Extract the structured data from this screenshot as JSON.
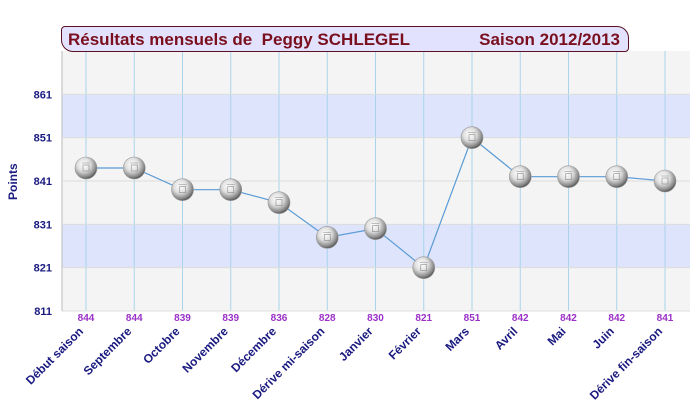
{
  "header": {
    "title_left": "Résultats mensuels de  Peggy SCHLEGEL",
    "title_right": "Saison 2012/2013"
  },
  "colors": {
    "band_blue": "#dde4fc",
    "band_gray": "#f4f4f4",
    "line": "#5b9bd5",
    "axis_text": "#1a1a80",
    "value_label": "#9b30c8",
    "title_text": "#7a0f1e",
    "title_bg": "#e2e2ff"
  },
  "chart_data": {
    "type": "line",
    "ylabel": "Points",
    "ylim": [
      811,
      871
    ],
    "yticks": [
      811,
      821,
      831,
      841,
      851,
      861
    ],
    "grid": true,
    "categories": [
      "Début saison",
      "Septembre",
      "Octobre",
      "Novembre",
      "Décembre",
      "Dérive mi-saison",
      "Janvier",
      "Février",
      "Mars",
      "Avril",
      "Mai",
      "Juin",
      "Dérive fin-saison"
    ],
    "values": [
      844,
      844,
      839,
      839,
      836,
      828,
      830,
      821,
      851,
      842,
      842,
      842,
      841
    ],
    "value_labels": [
      "844",
      "844",
      "839",
      "839",
      "836",
      "828",
      "830",
      "821",
      "851",
      "842",
      "842",
      "842",
      "841"
    ],
    "marker": "silver-sphere"
  }
}
